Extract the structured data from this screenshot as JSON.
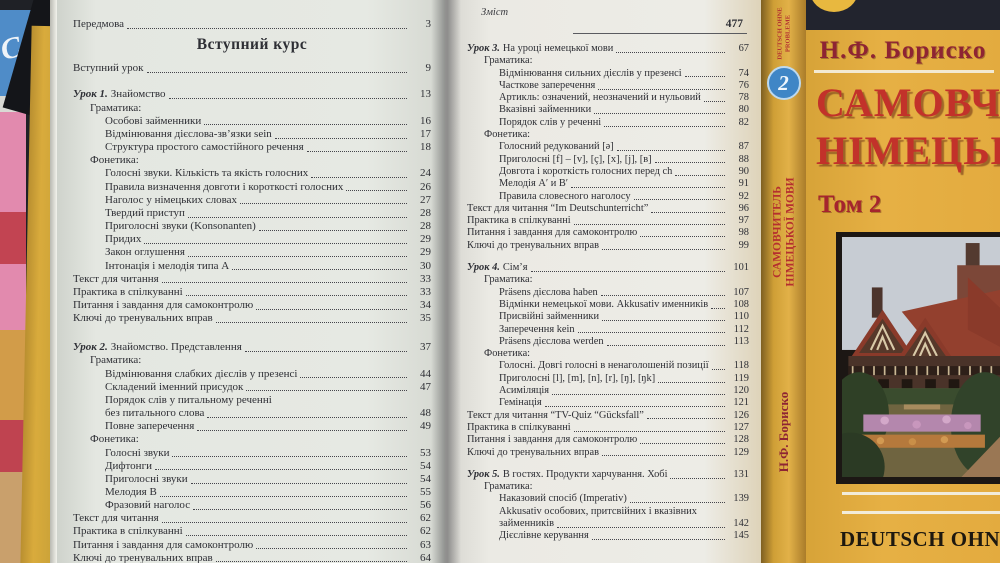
{
  "background_books": {
    "blue_letter": "С"
  },
  "left_page": {
    "entries": [
      {
        "t": "Передмова",
        "p": "3"
      },
      {
        "t": "Вступний курс",
        "h": true
      },
      {
        "t": "Вступний урок",
        "p": "9",
        "mt": 2
      },
      {
        "pre": "Урок 1.",
        "t": "Знайомство",
        "p": "13",
        "mt": 13
      },
      {
        "t": "Граматика:",
        "lv": 1
      },
      {
        "t": "Особові займенники",
        "p": "16",
        "lv": 2
      },
      {
        "t": "Відмінювання дієслова-зв’язки sein",
        "p": "17",
        "lv": 2
      },
      {
        "t": "Структура простого самостійного речення",
        "p": "18",
        "lv": 2
      },
      {
        "t": "Фонетика:",
        "lv": 1
      },
      {
        "t": "Голосні звуки. Кількість та якість голосних",
        "p": "24",
        "lv": 2
      },
      {
        "t": "Правила визначення довготи і короткості голосних",
        "p": "26",
        "lv": 2
      },
      {
        "t": "Наголос у німецьких словах",
        "p": "27",
        "lv": 2
      },
      {
        "t": "Твердий приступ",
        "p": "28",
        "lv": 2
      },
      {
        "t": "Приголосні звуки (Konsonanten)",
        "p": "28",
        "lv": 2
      },
      {
        "t": "Придих",
        "p": "29",
        "lv": 2
      },
      {
        "t": "Закон оглушення",
        "p": "29",
        "lv": 2
      },
      {
        "t": "Інтонація і мелодія типа А",
        "p": "30",
        "lv": 2
      },
      {
        "t": "Текст для читання",
        "p": "33"
      },
      {
        "t": "Практика в спілкуванні",
        "p": "33"
      },
      {
        "t": "Питання і завдання для самоконтролю",
        "p": "34"
      },
      {
        "t": "Ключі до тренувальних вправ",
        "p": "35"
      },
      {
        "pre": "Урок 2.",
        "t": "Знайомство. Представлення",
        "p": "37",
        "mt": 16
      },
      {
        "t": "Граматика:",
        "lv": 1
      },
      {
        "t": "Відмінювання слабких дієслів у презенсі",
        "p": "44",
        "lv": 2
      },
      {
        "t": "Складений іменний присудок",
        "p": "47",
        "lv": 2
      },
      {
        "t": "Порядок слів у питальному реченні",
        "lv": 2
      },
      {
        "t": "без питального слова",
        "p": "48",
        "lv": 2
      },
      {
        "t": "Повне заперечення",
        "p": "49",
        "lv": 2
      },
      {
        "t": "Фонетика:",
        "lv": 1
      },
      {
        "t": "Голосні звуки",
        "p": "53",
        "lv": 2
      },
      {
        "t": "Дифтонги",
        "p": "54",
        "lv": 2
      },
      {
        "t": "Приголосні звуки",
        "p": "54",
        "lv": 2
      },
      {
        "t": "Мелодия В",
        "p": "55",
        "lv": 2
      },
      {
        "t": "Фразовий наголос",
        "p": "56",
        "lv": 2
      },
      {
        "t": "Текст для читання",
        "p": "62"
      },
      {
        "t": "Практика в спілкуванні",
        "p": "62"
      },
      {
        "t": "Питання і завдання для самоконтролю",
        "p": "63"
      },
      {
        "t": "Ключі до тренувальних вправ",
        "p": "64"
      }
    ]
  },
  "right_page": {
    "header": "Зміст",
    "page_number": "477",
    "entries": [
      {
        "pre": "Урок 3.",
        "t": "На уроці немецької мови",
        "p": "67"
      },
      {
        "t": "Граматика:",
        "lv": 1
      },
      {
        "t": "Відмінювання сильних дієслів у презенсі",
        "p": "74",
        "lv": 2
      },
      {
        "t": "Часткове заперечення",
        "p": "76",
        "lv": 2
      },
      {
        "t": "Артикль: означений, неозначений и нульовий",
        "p": "78",
        "lv": 2
      },
      {
        "t": "Вказівні займенники",
        "p": "80",
        "lv": 2
      },
      {
        "t": "Порядок слів у реченні",
        "p": "82",
        "lv": 2
      },
      {
        "t": "Фонетика:",
        "lv": 1
      },
      {
        "t": "Голосний редукований [ə]",
        "p": "87",
        "lv": 2
      },
      {
        "t": "Приголосні [f] – [v], [ç], [x], [j], [в]",
        "p": "88",
        "lv": 2
      },
      {
        "t": "Довгота і короткість голосних перед ch",
        "p": "90",
        "lv": 2
      },
      {
        "t": "Мелодія А′ и В′",
        "p": "91",
        "lv": 2
      },
      {
        "t": "Правила словесного наголосу",
        "p": "92",
        "lv": 2
      },
      {
        "t": "Текст для читання “Im Deutschunterricht”",
        "p": "96"
      },
      {
        "t": "Практика в спілкуванні",
        "p": "97"
      },
      {
        "t": "Питання і завдання для самоконтролю",
        "p": "98"
      },
      {
        "t": "Ключі до тренувальних вправ",
        "p": "99"
      },
      {
        "pre": "Урок 4.",
        "t": "Сім’я",
        "p": "101",
        "mt": 10
      },
      {
        "t": "Граматика:",
        "lv": 1
      },
      {
        "t": "Präsens дієслова haben",
        "p": "107",
        "lv": 2
      },
      {
        "t": "Відмінки немецької мови. Akkusativ именників",
        "p": "108",
        "lv": 2
      },
      {
        "t": "Присвійні займенники",
        "p": "110",
        "lv": 2
      },
      {
        "t": "Заперечення kein",
        "p": "112",
        "lv": 2
      },
      {
        "t": "Präsens дієслова werden",
        "p": "113",
        "lv": 2
      },
      {
        "t": "Фонетика:",
        "lv": 1
      },
      {
        "t": "Голосні. Довгі голосні в ненаголошеній позиції",
        "p": "118",
        "lv": 2
      },
      {
        "t": "Приголосні [l], [m], [n], [r], [ŋ], [ŋk]",
        "p": "119",
        "lv": 2
      },
      {
        "t": "Асиміляція",
        "p": "120",
        "lv": 2
      },
      {
        "t": "Гемінація",
        "p": "121",
        "lv": 2
      },
      {
        "t": "Текст для читання “TV-Quiz “Gücksfall”",
        "p": "126"
      },
      {
        "t": "Практика в спілкуванні",
        "p": "127"
      },
      {
        "t": "Питання і завдання для самоконтролю",
        "p": "128"
      },
      {
        "t": "Ключі до тренувальних вправ",
        "p": "129"
      },
      {
        "pre": "Урок 5.",
        "t": "В гостях. Продукти харчування. Хобі",
        "p": "131",
        "mt": 10
      },
      {
        "t": "Граматика:",
        "lv": 1
      },
      {
        "t": "Наказовий спосіб (Imperativ)",
        "p": "139",
        "lv": 2
      },
      {
        "t": "Akkusativ особових, притсвійних і вказівних",
        "lv": 2
      },
      {
        "t": "займенників",
        "p": "142",
        "lv": 2
      },
      {
        "t": "Дієслівне керування",
        "p": "145",
        "lv": 2
      }
    ]
  },
  "cover": {
    "author": "Н.Ф. Бориско",
    "title_line1": "САМОВЧИТЕЛЬ",
    "title_line2": "НІМЕЦЬКОЇ",
    "volume": "Том 2",
    "series": "DEUTSCH OHNE PROBLEME",
    "spine": {
      "top_text": "DEUTSCH OHNE PROBLEME",
      "badge": "2",
      "title_line1": "САМОВЧИТЕЛЬ",
      "title_line2": "НІМЕЦЬКОЇ МОВИ",
      "author": "Н.Ф. Бориско"
    },
    "colors": {
      "cover_yellow": "#e3ab3f",
      "title_red": "#c2322a",
      "author_maroon": "#8e2433",
      "top_band_dark": "#22242e",
      "badge_blue": "#3f86c6"
    }
  }
}
